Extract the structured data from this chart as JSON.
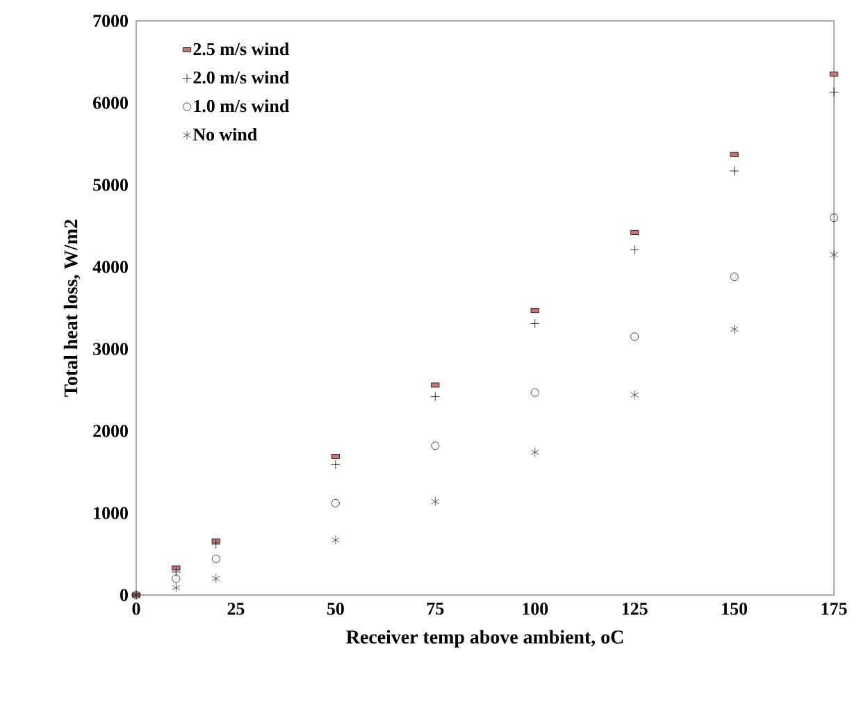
{
  "chart_data": {
    "type": "scatter",
    "xlabel": "Receiver temp above ambient, oC",
    "ylabel": "Total heat loss, W/m2",
    "x": [
      0,
      10,
      20,
      50,
      75,
      100,
      125,
      150,
      175
    ],
    "series": [
      {
        "name": "2.5 m/s wind",
        "color": "#c07878",
        "marker": "square",
        "values": [
          0,
          330,
          660,
          1690,
          2560,
          3470,
          4420,
          5370,
          6350
        ]
      },
      {
        "name": "2.0 m/s wind",
        "color": "#000000",
        "marker": "cross",
        "values": [
          0,
          280,
          620,
          1590,
          2420,
          3310,
          4210,
          5170,
          6130
        ]
      },
      {
        "name": "1.0 m/s wind",
        "color": "#1a1a1a",
        "marker": "circle",
        "values": [
          0,
          200,
          440,
          1120,
          1820,
          2470,
          3150,
          3880,
          4600
        ]
      },
      {
        "name": "No wind",
        "color": "#333333",
        "values": [
          0,
          90,
          200,
          670,
          1140,
          1740,
          2440,
          3240,
          4150
        ]
      }
    ],
    "xlim": [
      0,
      175
    ],
    "xticks": [
      0,
      25,
      50,
      75,
      100,
      125,
      150,
      175
    ],
    "ylim": [
      0,
      7000
    ],
    "yticks": [
      0,
      1000,
      2000,
      3000,
      4000,
      5000,
      6000,
      7000
    ],
    "legend": "top left",
    "grid": false
  }
}
